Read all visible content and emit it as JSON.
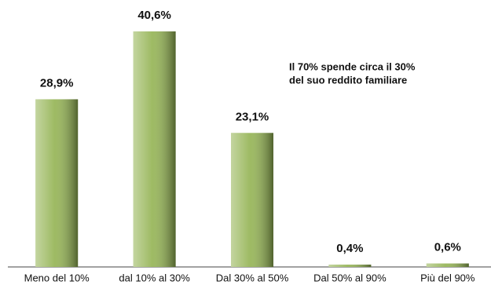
{
  "chart_data": {
    "type": "bar",
    "categories": [
      "Meno del 10%",
      "dal 10% al 30%",
      "Dal 30% al 50%",
      "Dal 50% al 90%",
      "Più del 90%"
    ],
    "values": [
      28.9,
      40.6,
      23.1,
      0.4,
      0.6
    ],
    "value_labels": [
      "28,9%",
      "40,6%",
      "23,1%",
      "0,4%",
      "0,6%"
    ],
    "color": "#93b352",
    "annotation": [
      "Il 70% spende circa il 30%",
      "del suo reddito familiare"
    ]
  }
}
